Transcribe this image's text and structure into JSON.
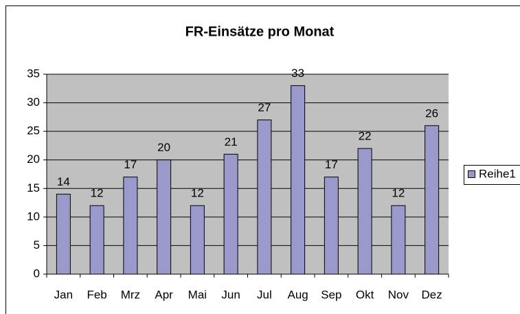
{
  "chart_data": {
    "type": "bar",
    "title": "FR-Einsätze pro Monat",
    "categories": [
      "Jan",
      "Feb",
      "Mrz",
      "Apr",
      "Mai",
      "Jun",
      "Jul",
      "Aug",
      "Sep",
      "Okt",
      "Nov",
      "Dez"
    ],
    "series": [
      {
        "name": "Reihe1",
        "color": "#9999cc",
        "values": [
          14,
          12,
          17,
          20,
          12,
          21,
          27,
          33,
          17,
          22,
          12,
          26
        ]
      }
    ],
    "ylim": [
      0,
      35
    ],
    "yticks": [
      0,
      5,
      10,
      15,
      20,
      25,
      30,
      35
    ],
    "grid": true,
    "legend": "right",
    "data_labels": true
  }
}
